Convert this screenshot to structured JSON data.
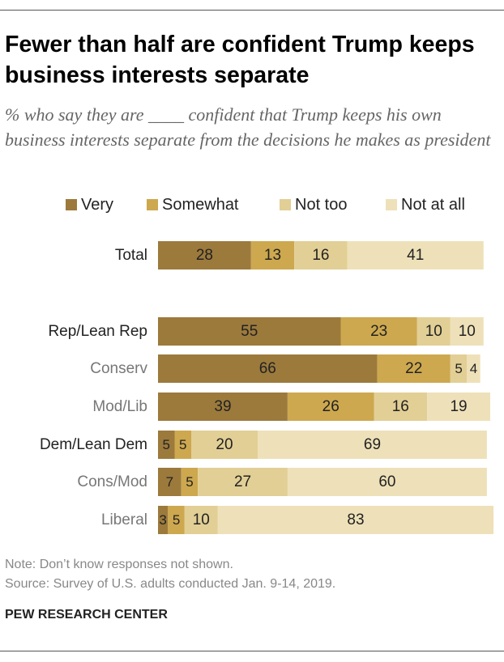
{
  "title": "Fewer than half are confident Trump keeps business interests separate",
  "subtitle": "% who say they are ____ confident that Trump keeps his own business interests separate from the decisions he makes as president",
  "note": "Note: Don’t know responses not shown.",
  "source": "Source: Survey of U.S. adults conducted Jan. 9-14, 2019.",
  "brand": "PEW RESEARCH CENTER",
  "colors": {
    "very": "#9c7a3c",
    "somewhat": "#cda84f",
    "not_too": "#e2cf95",
    "not_at_all": "#eee1b9",
    "label_primary": "#222222",
    "label_secondary": "#777777"
  },
  "chart_data": {
    "type": "bar",
    "orientation": "horizontal",
    "stacked": true,
    "title": "Fewer than half are confident Trump keeps business interests separate",
    "xlim": [
      0,
      100
    ],
    "categories": [
      "Total",
      "Rep/Lean Rep",
      "Conserv",
      "Mod/Lib",
      "Dem/Lean Dem",
      "Cons/Mod",
      "Liberal"
    ],
    "category_style": [
      "primary",
      "primary",
      "secondary",
      "secondary",
      "primary",
      "secondary",
      "secondary"
    ],
    "series": [
      {
        "name": "Very",
        "color_key": "very",
        "values": [
          28,
          55,
          66,
          39,
          5,
          7,
          3
        ]
      },
      {
        "name": "Somewhat",
        "color_key": "somewhat",
        "values": [
          13,
          23,
          22,
          26,
          5,
          5,
          5
        ]
      },
      {
        "name": "Not too",
        "color_key": "not_too",
        "values": [
          16,
          10,
          5,
          16,
          20,
          27,
          10
        ]
      },
      {
        "name": "Not at all",
        "color_key": "not_at_all",
        "values": [
          41,
          10,
          4,
          19,
          69,
          60,
          83
        ]
      }
    ]
  }
}
